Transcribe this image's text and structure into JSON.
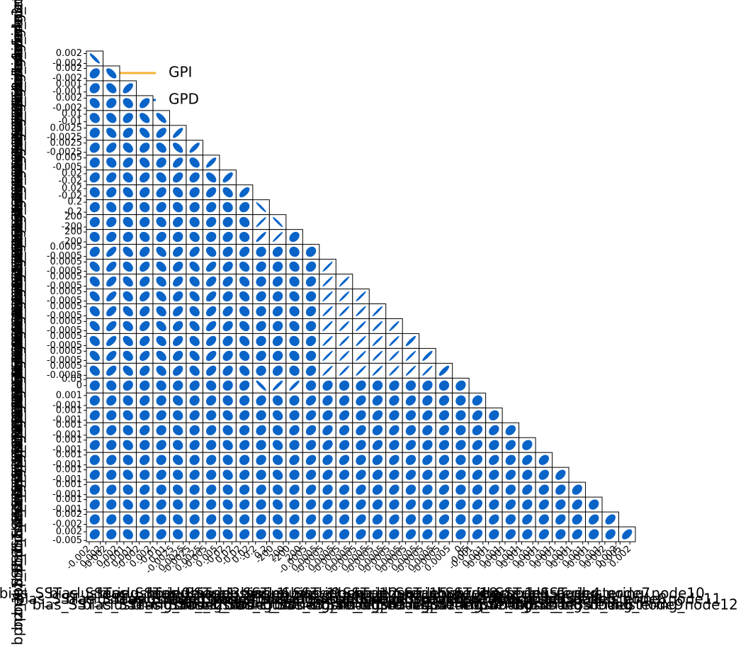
{
  "chart_data": {
    "type": "corner",
    "legend": [
      {
        "name": "GPI",
        "color": "#f5b335"
      },
      {
        "name": "GPD",
        "color": "#0a64c8"
      }
    ],
    "color": "#0a64c8",
    "params": [
      {
        "name": "bias_SST_clustering_node0",
        "lim": [
          -0.003,
          0.003
        ],
        "ticks": [
          -0.002,
          0.002
        ]
      },
      {
        "name": "bias_SST_clustering_node1",
        "lim": [
          -0.003,
          0.003
        ],
        "ticks": [
          -0.002,
          0.002
        ]
      },
      {
        "name": "bias_SST_clustering_node2",
        "lim": [
          -0.002,
          0.002
        ],
        "ticks": [
          -0.001,
          0.001
        ]
      },
      {
        "name": "bias_SST_clustering_node3",
        "lim": [
          -0.003,
          0.003
        ],
        "ticks": [
          -0.002,
          0.002
        ]
      },
      {
        "name": "bias_SST_clustering_node4",
        "lim": [
          -0.02,
          0.02
        ],
        "ticks": [
          -0.01,
          0.01
        ]
      },
      {
        "name": "bias_SST_clustering_node5",
        "lim": [
          -0.004,
          0.004
        ],
        "ticks": [
          -0.0025,
          0.0025
        ]
      },
      {
        "name": "bias_SST_clustering_node6",
        "lim": [
          -0.004,
          0.004
        ],
        "ticks": [
          -0.0025,
          0.0025
        ]
      },
      {
        "name": "bias_SST_clustering_node7",
        "lim": [
          -0.008,
          0.008
        ],
        "ticks": [
          -0.005,
          0.005
        ]
      },
      {
        "name": "bias_SST_clustering_node8",
        "lim": [
          -0.04,
          0.04
        ],
        "ticks": [
          -0.02,
          0.02
        ]
      },
      {
        "name": "bias_SST_clustering_node9",
        "lim": [
          -0.04,
          0.04
        ],
        "ticks": [
          -0.02,
          0.02
        ]
      },
      {
        "name": "bias_1_SST_clustering_node0",
        "lim": [
          -0.3,
          0.3
        ],
        "ticks": [
          -0.2,
          0.2
        ]
      },
      {
        "name": "bias_1_SST_clustering_node1",
        "lim": [
          -300,
          300
        ],
        "ticks": [
          -200,
          200
        ]
      },
      {
        "name": "bias_1_SST_clustering_node2",
        "lim": [
          -300,
          300
        ],
        "ticks": [
          -200,
          200
        ]
      },
      {
        "name": "bias_1_SST_clustering_node3",
        "lim": [
          -0.0008,
          0.0008
        ],
        "ticks": [
          -0.0005,
          0.0005
        ]
      },
      {
        "name": "bias_1_SST_clustering_node4",
        "lim": [
          -0.0008,
          0.0008
        ],
        "ticks": [
          -0.0005,
          0.0005
        ]
      },
      {
        "name": "bias_1_SST_clustering_node5",
        "lim": [
          -0.0008,
          0.0008
        ],
        "ticks": [
          -0.0005,
          0.0005
        ]
      },
      {
        "name": "bias_1_SST_clustering_node6",
        "lim": [
          -0.0008,
          0.0008
        ],
        "ticks": [
          -0.0005,
          0.0005
        ]
      },
      {
        "name": "bias_1_SST_clustering_node7",
        "lim": [
          -0.0008,
          0.0008
        ],
        "ticks": [
          -0.0005,
          0.0005
        ]
      },
      {
        "name": "bias_1_SST_clustering_node8",
        "lim": [
          -0.0008,
          0.0008
        ],
        "ticks": [
          -0.0005,
          0.0005
        ]
      },
      {
        "name": "bias_1_SST_clustering_node9",
        "lim": [
          -0.0008,
          0.0008
        ],
        "ticks": [
          -0.0005,
          0.0005
        ]
      },
      {
        "name": "bpnz_1_SST_clustering_node0",
        "lim": [
          -0.0008,
          0.0008
        ],
        "ticks": [
          -0.0005,
          0.0005
        ]
      },
      {
        "name": "bpnz_1_SST_clustering_node1",
        "lim": [
          -0.0008,
          0.0008
        ],
        "ticks": [
          -0.0005,
          0.0005
        ]
      },
      {
        "name": "bpnz_1_SST_clustering_node2",
        "lim": [
          -0.06,
          0.06
        ],
        "ticks": [
          0.0,
          0.05
        ]
      },
      {
        "name": "bpnz_1_SST_clustering_node3",
        "lim": [
          -0.0015,
          0.0015
        ],
        "ticks": [
          -0.001,
          0.001
        ]
      },
      {
        "name": "bpnz_1_SST_clustering_node4",
        "lim": [
          -0.0015,
          0.0015
        ],
        "ticks": [
          -0.001,
          0.001
        ]
      },
      {
        "name": "bpnz_1_SST_clustering_node5",
        "lim": [
          -0.0015,
          0.0015
        ],
        "ticks": [
          -0.001,
          0.001
        ]
      },
      {
        "name": "bpnz_1_SST_clustering_node6",
        "lim": [
          -0.0015,
          0.0015
        ],
        "ticks": [
          -0.001,
          0.001
        ]
      },
      {
        "name": "bpnz_1_SST_clustering_node7",
        "lim": [
          -0.0015,
          0.0015
        ],
        "ticks": [
          -0.001,
          0.001
        ]
      },
      {
        "name": "bpnz_1_SST_clustering_node8",
        "lim": [
          -0.0015,
          0.0015
        ],
        "ticks": [
          -0.001,
          0.001
        ]
      },
      {
        "name": "bpnz_1_SST_clustering_node9",
        "lim": [
          -0.0015,
          0.0015
        ],
        "ticks": [
          -0.001,
          0.001
        ]
      },
      {
        "name": "bpnz_1_SST_clustering_node10",
        "lim": [
          -0.0015,
          0.0015
        ],
        "ticks": [
          -0.001,
          0.001
        ]
      },
      {
        "name": "bpnz_1_SST_clustering_node11",
        "lim": [
          -0.003,
          0.003
        ],
        "ticks": [
          -0.002,
          0.002
        ]
      },
      {
        "name": "bpnz_1_SST_clustering_node12",
        "lim": [
          -0.006,
          0.006
        ],
        "ticks": [
          -0.005,
          0.002
        ]
      }
    ],
    "corr": [
      [
        -0.9
      ],
      [
        0.3,
        -0.6
      ],
      [
        0.2,
        -0.4,
        0.6
      ],
      [
        -0.3,
        0.2,
        -0.3,
        0.5
      ],
      [
        -0.2,
        -0.3,
        0.3,
        -0.5,
        -0.7
      ],
      [
        0.1,
        -0.4,
        0.3,
        -0.5,
        0.5,
        0.8
      ],
      [
        0.2,
        0.4,
        -0.3,
        0.3,
        -0.4,
        -0.6,
        0.8
      ],
      [
        0.1,
        -0.2,
        0.3,
        -0.3,
        0.2,
        0.5,
        -0.4,
        0.8
      ],
      [
        0.2,
        0.3,
        -0.2,
        0.3,
        -0.3,
        0.4,
        0.3,
        -0.5,
        0.7
      ],
      [
        -0.1,
        0.2,
        -0.3,
        0.2,
        0.3,
        -0.3,
        0.2,
        0.4,
        -0.4,
        0.6
      ],
      [
        0.1,
        -0.2,
        0.2,
        -0.1,
        0.2,
        -0.2,
        0.1,
        0.2,
        -0.1,
        0.2,
        -0.95
      ],
      [
        0.1,
        0.2,
        -0.2,
        0.1,
        -0.2,
        0.2,
        -0.1,
        0.2,
        0.1,
        -0.2,
        0.95,
        -0.95
      ],
      [
        -0.1,
        0.2,
        0.1,
        -0.2,
        0.2,
        0.1,
        -0.2,
        0.1,
        0.2,
        -0.1,
        0.9,
        0.95,
        0.3
      ],
      [
        0.2,
        0.6,
        -0.4,
        0.3,
        -0.4,
        0.3,
        0.4,
        -0.3,
        0.2,
        0.3,
        0.1,
        0.2,
        -0.1,
        0.2
      ],
      [
        -0.4,
        0.5,
        -0.3,
        0.4,
        -0.4,
        0.3,
        -0.4,
        0.5,
        0.3,
        -0.3,
        0.2,
        0.1,
        -0.2,
        0.2,
        0.95
      ],
      [
        -0.3,
        0.5,
        -0.4,
        0.3,
        -0.3,
        0.4,
        -0.3,
        0.4,
        0.3,
        -0.3,
        0.1,
        0.2,
        -0.1,
        0.2,
        0.95,
        0.95
      ],
      [
        -0.4,
        0.6,
        -0.3,
        0.4,
        -0.4,
        0.3,
        -0.4,
        0.5,
        0.2,
        -0.3,
        0.2,
        0.1,
        -0.2,
        0.1,
        0.95,
        0.95,
        0.95
      ],
      [
        -0.3,
        0.5,
        -0.4,
        0.3,
        -0.3,
        0.4,
        -0.3,
        0.4,
        0.3,
        -0.2,
        0.1,
        0.2,
        -0.1,
        0.2,
        0.95,
        0.95,
        0.95,
        0.95
      ],
      [
        -0.4,
        0.5,
        -0.3,
        0.4,
        -0.4,
        0.3,
        -0.4,
        0.5,
        0.3,
        -0.3,
        0.2,
        0.1,
        -0.2,
        0.1,
        0.95,
        0.95,
        0.95,
        0.95,
        0.95
      ],
      [
        -0.3,
        0.6,
        -0.4,
        0.3,
        -0.3,
        0.4,
        -0.3,
        0.4,
        0.2,
        -0.3,
        0.1,
        0.2,
        -0.1,
        0.2,
        0.95,
        0.95,
        0.95,
        0.95,
        0.95,
        0.9
      ],
      [
        -0.4,
        0.5,
        -0.3,
        0.4,
        -0.4,
        0.3,
        -0.4,
        0.5,
        0.3,
        -0.2,
        0.2,
        0.1,
        -0.2,
        0.1,
        0.95,
        0.95,
        0.95,
        0.95,
        0.95,
        0.95,
        0.9
      ],
      [
        -0.3,
        0.5,
        -0.4,
        0.3,
        -0.3,
        0.4,
        -0.3,
        0.4,
        0.3,
        -0.3,
        0.1,
        0.2,
        -0.1,
        0.2,
        0.95,
        0.95,
        0.95,
        0.95,
        0.95,
        0.95,
        0.95,
        0.8
      ],
      [
        0.1,
        -0.1,
        0.2,
        0.1,
        -0.1,
        0.1,
        0.2,
        -0.1,
        0.1,
        0.2,
        -0.9,
        0.9,
        0.9,
        0.1,
        0.2,
        0.1,
        0.2,
        0.1,
        0.2,
        0.1,
        0.2,
        0.1,
        0.2
      ],
      [
        0.1,
        0.2,
        -0.1,
        0.2,
        0.1,
        -0.2,
        0.1,
        0.2,
        -0.1,
        0.1,
        0.2,
        -0.1,
        0.1,
        0.3,
        0.2,
        0.2,
        0.3,
        0.2,
        0.2,
        0.3,
        0.2,
        0.2,
        0.1,
        0.2
      ],
      [
        0.2,
        0.1,
        -0.2,
        0.1,
        0.2,
        -0.1,
        0.2,
        0.1,
        -0.2,
        0.2,
        0.1,
        -0.2,
        0.1,
        0.3,
        0.2,
        0.3,
        0.2,
        0.3,
        0.2,
        0.2,
        0.3,
        0.2,
        0.1,
        0.3,
        0.2
      ],
      [
        0.1,
        0.2,
        -0.1,
        0.2,
        0.1,
        -0.2,
        0.1,
        0.2,
        -0.1,
        0.1,
        0.2,
        -0.1,
        0.2,
        0.3,
        0.3,
        0.2,
        0.3,
        0.2,
        0.3,
        0.2,
        0.2,
        0.3,
        0.1,
        0.2,
        0.3,
        0.3
      ],
      [
        0.2,
        0.1,
        -0.2,
        0.1,
        0.2,
        -0.1,
        0.2,
        0.1,
        -0.2,
        0.2,
        0.1,
        -0.2,
        0.1,
        0.2,
        0.3,
        0.2,
        0.2,
        0.3,
        0.2,
        0.3,
        0.2,
        0.2,
        0.2,
        0.3,
        0.2,
        0.3,
        0.2
      ],
      [
        0.1,
        0.2,
        -0.1,
        0.2,
        0.1,
        -0.2,
        0.1,
        0.2,
        -0.1,
        0.1,
        0.2,
        -0.1,
        0.2,
        0.3,
        0.2,
        0.3,
        0.2,
        0.2,
        0.3,
        0.2,
        0.3,
        0.2,
        0.1,
        0.2,
        0.3,
        0.2,
        0.3,
        0.3
      ],
      [
        0.2,
        0.1,
        -0.2,
        0.1,
        0.2,
        -0.1,
        0.2,
        0.1,
        -0.2,
        0.2,
        0.1,
        -0.2,
        0.1,
        0.2,
        0.3,
        0.2,
        0.3,
        0.2,
        0.2,
        0.3,
        0.2,
        0.3,
        0.2,
        0.3,
        0.2,
        0.3,
        0.2,
        0.3,
        0.4
      ],
      [
        0.1,
        0.2,
        -0.1,
        0.2,
        0.1,
        -0.2,
        0.1,
        0.2,
        -0.1,
        0.1,
        0.2,
        -0.1,
        0.2,
        0.3,
        0.2,
        0.2,
        0.3,
        0.2,
        0.3,
        0.2,
        0.2,
        0.3,
        0.1,
        0.2,
        0.3,
        0.2,
        0.3,
        0.2,
        0.3,
        0.3
      ],
      [
        0.2,
        0.1,
        -0.2,
        0.1,
        0.2,
        -0.1,
        0.2,
        0.1,
        -0.2,
        0.2,
        0.1,
        -0.2,
        0.1,
        0.2,
        0.3,
        0.2,
        0.3,
        0.2,
        0.2,
        0.3,
        0.2,
        0.3,
        0.2,
        0.3,
        0.2,
        0.3,
        0.2,
        0.3,
        0.2,
        0.3,
        0.2
      ],
      [
        0.1,
        0.2,
        -0.1,
        0.2,
        0.1,
        -0.2,
        0.1,
        0.2,
        -0.1,
        0.1,
        0.2,
        -0.1,
        0.2,
        0.3,
        0.2,
        0.2,
        0.3,
        0.2,
        0.3,
        0.2,
        0.2,
        0.3,
        0.1,
        0.2,
        0.3,
        0.2,
        0.3,
        0.2,
        0.3,
        0.2,
        0.3,
        0.4
      ],
      [
        0.2,
        0.1,
        -0.2,
        0.1,
        0.2,
        -0.1,
        0.2,
        0.1,
        -0.2,
        0.2,
        0.1,
        -0.2,
        0.1,
        0.2,
        0.3,
        0.2,
        0.3,
        0.2,
        0.2,
        0.3,
        0.2,
        0.3,
        0.2,
        0.3,
        0.2,
        0.3,
        0.2,
        0.3,
        0.2,
        0.3,
        0.2,
        0.3,
        0.5
      ]
    ]
  }
}
